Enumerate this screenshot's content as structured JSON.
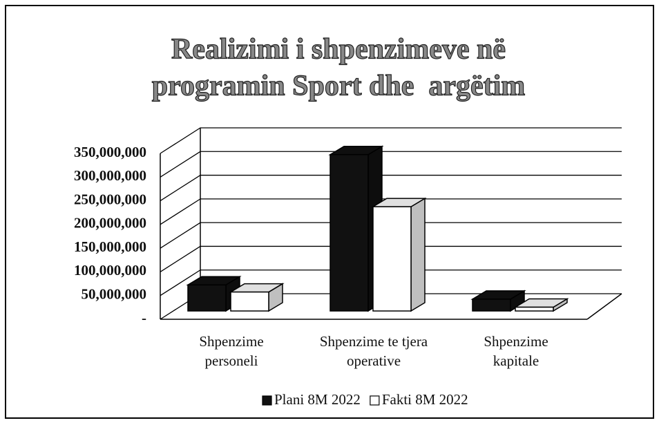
{
  "chart_data": {
    "type": "bar3d",
    "title": [
      "Realizimi i shpenzimeve në",
      "programin Sport dhe  argëtim"
    ],
    "categories": [
      [
        "Shpenzime",
        "personeli"
      ],
      [
        "Shpenzime te tjera",
        "operative"
      ],
      [
        "Shpenzime",
        "kapitale"
      ]
    ],
    "series": [
      {
        "name": "Plani 8M 2022",
        "color": "#111111",
        "values": [
          55000000,
          330000000,
          25000000
        ]
      },
      {
        "name": "Fakti 8M 2022",
        "color": "#ffffff",
        "values": [
          40000000,
          220000000,
          8000000
        ]
      }
    ],
    "ylim": [
      0,
      350000000
    ],
    "yticks": [
      {
        "value": 0,
        "label": "-"
      },
      {
        "value": 50000000,
        "label": "50,000,000"
      },
      {
        "value": 100000000,
        "label": "100,000,000"
      },
      {
        "value": 150000000,
        "label": "150,000,000"
      },
      {
        "value": 200000000,
        "label": "200,000,000"
      },
      {
        "value": 250000000,
        "label": "250,000,000"
      },
      {
        "value": 300000000,
        "label": "300,000,000"
      },
      {
        "value": 350000000,
        "label": "350,000,000"
      }
    ],
    "grid": true,
    "legend": "bottom"
  }
}
